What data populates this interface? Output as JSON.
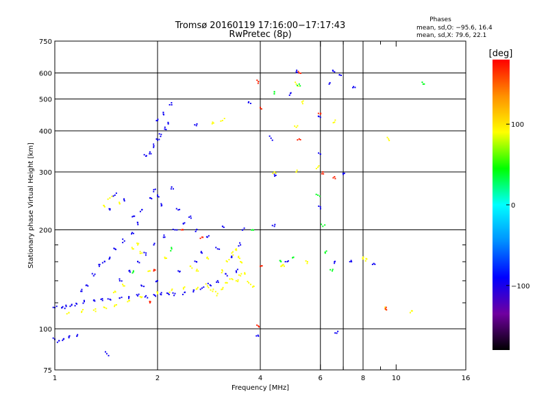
{
  "chart_data": {
    "type": "scatter",
    "title": "Tromsø 20160119 17:16:00−17:17:43",
    "subtitle": "RwPretec (8p)",
    "xlabel": "Frequency [MHz]",
    "ylabel": "Stationary phase Virtual Height [km]",
    "x_scale": "log",
    "y_scale": "log",
    "xlim": [
      1,
      16
    ],
    "ylim": [
      75,
      750
    ],
    "x_ticks": [
      1,
      2,
      4,
      6,
      8,
      10,
      16
    ],
    "x_tick_labels": [
      "1",
      "2",
      "4",
      "6",
      "8",
      "10",
      "16"
    ],
    "x_minor_ticks": [
      7,
      9
    ],
    "x_grid": [
      2,
      4,
      6,
      7,
      8
    ],
    "y_ticks": [
      75,
      100,
      200,
      300,
      400,
      500,
      600,
      750
    ],
    "y_tick_labels": [
      "75",
      "100",
      "200",
      "300",
      "400",
      "500",
      "600",
      "750"
    ],
    "y_minor_ticks": [
      120,
      140,
      160,
      180
    ],
    "y_grid": [
      100,
      200,
      300,
      400,
      500,
      600
    ],
    "grid": true,
    "legend": {
      "title": "Phases",
      "lines": [
        "mean, sd,O:  −95.6, 16.4",
        "mean, sd,X:   79.6, 22.1"
      ],
      "placement": "top-right"
    },
    "colorbar": {
      "label": "[deg]",
      "min": -180,
      "max": 180,
      "ticks": [
        100,
        0,
        -100
      ],
      "tick_labels": [
        "100",
        "0",
        "−100"
      ],
      "colors": [
        "#000000",
        "#7000a0",
        "#0000ff",
        "#0090ff",
        "#00ffff",
        "#00ff00",
        "#ffff00",
        "#ff9000",
        "#ff0000"
      ]
    },
    "series": [
      {
        "note": "O-mode trace (blue)",
        "phase": -95,
        "points": [
          [
            1.0,
            93
          ],
          [
            1.03,
            92
          ],
          [
            1.06,
            93
          ],
          [
            1.1,
            94
          ],
          [
            1.16,
            95
          ],
          [
            1.42,
            84
          ],
          [
            1.0,
            116
          ],
          [
            1.05,
            116
          ],
          [
            1.08,
            117
          ],
          [
            1.12,
            118
          ],
          [
            1.16,
            119
          ],
          [
            1.22,
            121
          ],
          [
            1.3,
            122
          ],
          [
            1.38,
            122
          ],
          [
            1.45,
            123
          ],
          [
            1.55,
            124
          ],
          [
            1.65,
            125
          ],
          [
            1.75,
            126
          ],
          [
            1.85,
            126
          ],
          [
            1.95,
            127
          ],
          [
            2.05,
            127
          ],
          [
            2.15,
            128
          ],
          [
            2.25,
            128
          ],
          [
            2.4,
            129
          ],
          [
            2.55,
            131
          ],
          [
            2.7,
            133
          ],
          [
            2.85,
            136
          ],
          [
            3.0,
            140
          ],
          [
            3.2,
            145
          ],
          [
            3.4,
            150
          ],
          [
            1.2,
            130
          ],
          [
            1.25,
            135
          ],
          [
            1.3,
            145
          ],
          [
            1.35,
            155
          ],
          [
            1.4,
            160
          ],
          [
            1.45,
            165
          ],
          [
            1.5,
            175
          ],
          [
            1.6,
            185
          ],
          [
            1.7,
            195
          ],
          [
            1.75,
            210
          ],
          [
            1.8,
            230
          ],
          [
            1.9,
            250
          ],
          [
            1.95,
            265
          ],
          [
            2.0,
            255
          ],
          [
            2.05,
            240
          ],
          [
            1.55,
            140
          ],
          [
            1.65,
            150
          ],
          [
            1.75,
            160
          ],
          [
            1.85,
            170
          ],
          [
            1.95,
            180
          ],
          [
            2.1,
            190
          ],
          [
            2.25,
            200
          ],
          [
            2.4,
            210
          ],
          [
            2.6,
            200
          ],
          [
            2.8,
            190
          ],
          [
            3.0,
            175
          ],
          [
            3.3,
            165
          ],
          [
            3.5,
            180
          ],
          [
            3.55,
            200
          ],
          [
            1.6,
            245
          ],
          [
            1.5,
            255
          ],
          [
            1.45,
            230
          ],
          [
            1.7,
            220
          ],
          [
            2.2,
            270
          ],
          [
            2.3,
            230
          ],
          [
            2.5,
            220
          ],
          [
            2.7,
            170
          ],
          [
            2.3,
            150
          ],
          [
            2.0,
            140
          ],
          [
            1.8,
            135
          ],
          [
            2.6,
            160
          ],
          [
            3.1,
            205
          ],
          [
            1.85,
            335
          ],
          [
            1.9,
            345
          ],
          [
            1.95,
            360
          ],
          [
            2.0,
            375
          ],
          [
            2.05,
            390
          ],
          [
            2.1,
            405
          ],
          [
            2.15,
            420
          ],
          [
            2.0,
            430
          ],
          [
            2.08,
            450
          ],
          [
            2.2,
            480
          ],
          [
            2.6,
            415
          ],
          [
            3.7,
            490
          ],
          [
            4.3,
            380
          ],
          [
            4.4,
            295
          ],
          [
            4.4,
            205
          ],
          [
            4.9,
            520
          ],
          [
            5.1,
            605
          ],
          [
            6.0,
            440
          ],
          [
            6.0,
            340
          ],
          [
            6.0,
            235
          ],
          [
            6.6,
            605
          ],
          [
            6.9,
            590
          ],
          [
            6.4,
            560
          ],
          [
            7.5,
            545
          ],
          [
            7.0,
            295
          ],
          [
            6.6,
            160
          ],
          [
            7.4,
            160
          ],
          [
            8.6,
            158
          ],
          [
            6.7,
            97
          ],
          [
            3.95,
            95
          ],
          [
            4.8,
            160
          ]
        ]
      },
      {
        "note": "X-mode trace (yellow/green/red)",
        "phase": 90,
        "points": [
          [
            1.1,
            112
          ],
          [
            1.2,
            113
          ],
          [
            1.3,
            114
          ],
          [
            1.4,
            116
          ],
          [
            1.5,
            118
          ],
          [
            1.65,
            122
          ],
          [
            1.8,
            125
          ],
          [
            2.0,
            128
          ],
          [
            2.2,
            131
          ],
          [
            2.4,
            134
          ],
          [
            2.6,
            132
          ],
          [
            2.8,
            135
          ],
          [
            2.9,
            130
          ],
          [
            3.0,
            128
          ],
          [
            3.1,
            132
          ],
          [
            3.2,
            138
          ],
          [
            3.3,
            142
          ],
          [
            3.4,
            140
          ],
          [
            3.5,
            145
          ],
          [
            3.6,
            148
          ],
          [
            3.7,
            138
          ],
          [
            3.8,
            134
          ],
          [
            3.1,
            150
          ],
          [
            3.2,
            160
          ],
          [
            3.3,
            170
          ],
          [
            3.4,
            175
          ],
          [
            3.45,
            165
          ],
          [
            3.5,
            160
          ],
          [
            1.45,
            250
          ],
          [
            1.55,
            240
          ],
          [
            1.4,
            235
          ],
          [
            1.7,
            175
          ],
          [
            1.75,
            180
          ],
          [
            1.8,
            170
          ],
          [
            1.9,
            150
          ],
          [
            2.5,
            155
          ],
          [
            2.6,
            150
          ],
          [
            1.6,
            135
          ],
          [
            1.5,
            130
          ],
          [
            2.8,
            165
          ],
          [
            2.1,
            165
          ],
          [
            2.9,
            425
          ],
          [
            3.1,
            430
          ],
          [
            5.1,
            555
          ],
          [
            5.3,
            490
          ],
          [
            5.1,
            410
          ],
          [
            4.4,
            300
          ],
          [
            5.1,
            300
          ],
          [
            5.9,
            310
          ],
          [
            6.6,
            425
          ],
          [
            5.5,
            160
          ],
          [
            4.6,
            155
          ],
          [
            4.7,
            155
          ],
          [
            8.0,
            163
          ],
          [
            8.2,
            163
          ],
          [
            9.5,
            378
          ],
          [
            11.0,
            112
          ],
          [
            9.3,
            115
          ]
        ]
      },
      {
        "note": "scattered red points",
        "phase": 170,
        "points": [
          [
            3.95,
            565
          ],
          [
            4.0,
            470
          ],
          [
            5.2,
            378
          ],
          [
            6.1,
            300
          ],
          [
            6.6,
            290
          ],
          [
            6.0,
            450
          ],
          [
            5.2,
            600
          ],
          [
            3.95,
            102
          ],
          [
            9.3,
            115
          ],
          [
            2.35,
            200
          ],
          [
            1.95,
            150
          ],
          [
            2.7,
            190
          ],
          [
            4.0,
            155
          ],
          [
            1.9,
            120
          ]
        ]
      },
      {
        "note": "scattered cyan/green points",
        "phase": 40,
        "points": [
          [
            4.4,
            525
          ],
          [
            5.2,
            555
          ],
          [
            6.1,
            205
          ],
          [
            6.2,
            170
          ],
          [
            5.9,
            255
          ],
          [
            5.0,
            165
          ],
          [
            12.0,
            555
          ],
          [
            3.8,
            200
          ],
          [
            4.6,
            160
          ],
          [
            6.5,
            150
          ],
          [
            2.2,
            175
          ],
          [
            1.7,
            150
          ]
        ]
      }
    ]
  }
}
